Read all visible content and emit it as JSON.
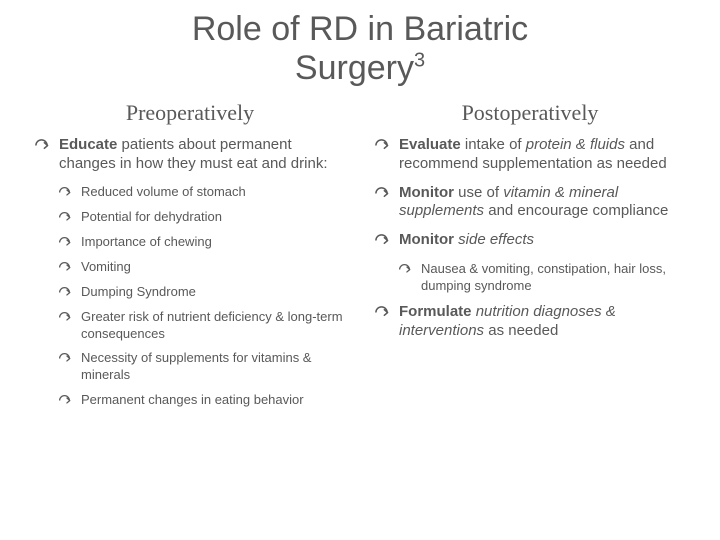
{
  "colors": {
    "text": "#595959",
    "background": "#ffffff"
  },
  "typography": {
    "title_fontsize": 34,
    "subheading_fontsize": 22,
    "bullet_l1_fontsize": 15,
    "bullet_l2_fontsize": 13,
    "title_family": "Arial",
    "subheading_family": "Georgia"
  },
  "title": {
    "line1": "Role of RD in Bariatric",
    "line2_pre": "Surgery",
    "line2_sup": "3"
  },
  "left": {
    "heading": "Preoperatively",
    "items": [
      {
        "level": 1,
        "runs": [
          {
            "t": "Educate",
            "b": true
          },
          {
            "t": " patients about permanent changes in how they must eat and drink:"
          }
        ]
      },
      {
        "level": 2,
        "runs": [
          {
            "t": "Reduced volume of stomach"
          }
        ]
      },
      {
        "level": 2,
        "runs": [
          {
            "t": "Potential for dehydration"
          }
        ]
      },
      {
        "level": 2,
        "runs": [
          {
            "t": "Importance of chewing"
          }
        ]
      },
      {
        "level": 2,
        "runs": [
          {
            "t": "Vomiting"
          }
        ]
      },
      {
        "level": 2,
        "runs": [
          {
            "t": "Dumping Syndrome"
          }
        ]
      },
      {
        "level": 2,
        "runs": [
          {
            "t": "Greater risk of nutrient deficiency & long-term consequences"
          }
        ]
      },
      {
        "level": 2,
        "runs": [
          {
            "t": "Necessity of supplements for vitamins & minerals"
          }
        ]
      },
      {
        "level": 2,
        "runs": [
          {
            "t": "Permanent changes in eating behavior"
          }
        ]
      }
    ]
  },
  "right": {
    "heading": "Postoperatively",
    "items": [
      {
        "level": 1,
        "runs": [
          {
            "t": "Evaluate",
            "b": true
          },
          {
            "t": " intake of "
          },
          {
            "t": "protein & fluids",
            "i": true
          },
          {
            "t": " and recommend supplementation as needed"
          }
        ]
      },
      {
        "level": 1,
        "runs": [
          {
            "t": "Monitor",
            "b": true
          },
          {
            "t": " use of "
          },
          {
            "t": "vitamin & mineral supplements",
            "i": true
          },
          {
            "t": " and encourage compliance"
          }
        ]
      },
      {
        "level": 1,
        "runs": [
          {
            "t": "Monitor",
            "b": true
          },
          {
            "t": " "
          },
          {
            "t": "side effects",
            "i": true
          }
        ]
      },
      {
        "level": 2,
        "runs": [
          {
            "t": "Nausea & vomiting, constipation, hair loss, dumping syndrome"
          }
        ]
      },
      {
        "level": 1,
        "runs": [
          {
            "t": "Formulate",
            "b": true
          },
          {
            "t": " "
          },
          {
            "t": "nutrition diagnoses & interventions",
            "i": true
          },
          {
            "t": " as needed"
          }
        ]
      }
    ]
  },
  "bullet_marker": "d"
}
